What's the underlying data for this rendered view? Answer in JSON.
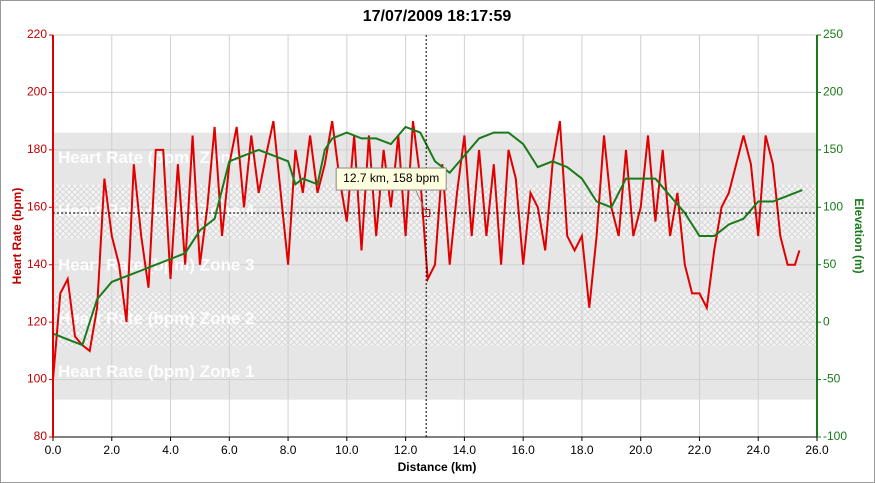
{
  "chart_data": {
    "type": "line",
    "title": "17/07/2009 18:17:59",
    "xlabel": "Distance (km)",
    "ylabel": "Heart Rate (bpm)",
    "y2label": "Elevation (m)",
    "xlim": [
      0,
      26
    ],
    "xticks": [
      {
        "value": 0,
        "label": "0.0"
      },
      {
        "value": 2,
        "label": "2.0"
      },
      {
        "value": 4,
        "label": "4.0"
      },
      {
        "value": 6,
        "label": "6.0"
      },
      {
        "value": 8,
        "label": "8.0"
      },
      {
        "value": 10,
        "label": "10.0"
      },
      {
        "value": 12,
        "label": "12.0"
      },
      {
        "value": 14,
        "label": "14.0"
      },
      {
        "value": 16,
        "label": "16.0"
      },
      {
        "value": 18,
        "label": "18.0"
      },
      {
        "value": 20,
        "label": "20.0"
      },
      {
        "value": 22,
        "label": "22.0"
      },
      {
        "value": 24,
        "label": "24.0"
      },
      {
        "value": 26,
        "label": "26.0"
      }
    ],
    "ylim": [
      80,
      220
    ],
    "yticks": [
      80,
      100,
      120,
      140,
      160,
      180,
      200,
      220
    ],
    "y2lim": [
      -100,
      250
    ],
    "y2ticks": [
      -100,
      -50,
      0,
      50,
      100,
      150,
      200,
      250
    ],
    "grid": true,
    "zones": [
      {
        "label": "Heart Rate (bpm) Zone 1",
        "from": 93,
        "to": 112,
        "pattern": "solid"
      },
      {
        "label": "Heart Rate (bpm) Zone 2",
        "from": 112,
        "to": 130,
        "pattern": "hatch"
      },
      {
        "label": "Heart Rate (bpm) Zone 3",
        "from": 130,
        "to": 149,
        "pattern": "solid"
      },
      {
        "label": "Heart Rate (bpm) Zone 4",
        "from": 149,
        "to": 168,
        "pattern": "hatch"
      },
      {
        "label": "Heart Rate (bpm) Zone 5",
        "from": 168,
        "to": 186,
        "pattern": "solid"
      }
    ],
    "crosshair": {
      "x": 12.7,
      "y": 158,
      "label": "12.7 km, 158 bpm"
    },
    "series": [
      {
        "color": "#e00000",
        "x": [
          0,
          0.25,
          0.5,
          0.75,
          1,
          1.25,
          1.5,
          1.75,
          2,
          2.25,
          2.5,
          2.75,
          3,
          3.25,
          3.5,
          3.75,
          4,
          4.25,
          4.5,
          4.75,
          5,
          5.25,
          5.5,
          5.75,
          6,
          6.25,
          6.5,
          6.75,
          7,
          7.25,
          7.5,
          7.75,
          8,
          8.25,
          8.5,
          8.75,
          9,
          9.25,
          9.5,
          9.75,
          10,
          10.25,
          10.5,
          10.75,
          11,
          11.25,
          11.5,
          11.75,
          12,
          12.25,
          12.5,
          12.75,
          13,
          13.25,
          13.5,
          13.75,
          14,
          14.25,
          14.5,
          14.75,
          15,
          15.25,
          15.5,
          15.75,
          16,
          16.25,
          16.5,
          16.75,
          17,
          17.25,
          17.5,
          17.75,
          18,
          18.25,
          18.5,
          18.75,
          19,
          19.25,
          19.5,
          19.75,
          20,
          20.25,
          20.5,
          20.75,
          21,
          21.25,
          21.5,
          21.75,
          22,
          22.25,
          22.5,
          22.75,
          23,
          23.25,
          23.5,
          23.75,
          24,
          24.25,
          24.5,
          24.75,
          25,
          25.25,
          25.4
        ],
        "values": [
          100,
          130,
          135,
          115,
          112,
          110,
          125,
          170,
          150,
          140,
          120,
          175,
          150,
          132,
          180,
          180,
          135,
          175,
          140,
          185,
          140,
          160,
          188,
          150,
          175,
          188,
          160,
          185,
          165,
          178,
          190,
          165,
          140,
          180,
          165,
          185,
          165,
          175,
          190,
          170,
          155,
          185,
          145,
          185,
          150,
          180,
          160,
          185,
          150,
          190,
          170,
          135,
          140,
          175,
          140,
          165,
          185,
          150,
          180,
          150,
          175,
          140,
          180,
          170,
          140,
          165,
          160,
          145,
          175,
          190,
          150,
          145,
          150,
          125,
          150,
          185,
          160,
          150,
          180,
          150,
          160,
          185,
          155,
          180,
          150,
          165,
          140,
          130,
          130,
          125,
          145,
          160,
          165,
          175,
          185,
          175,
          150,
          185,
          175,
          150,
          140,
          140,
          145
        ]
      },
      {
        "color": "#1a7a1a",
        "axis": "y2",
        "x": [
          0,
          0.5,
          1,
          1.5,
          2,
          2.5,
          3,
          3.5,
          4,
          4.5,
          5,
          5.5,
          6,
          6.5,
          7,
          7.5,
          8,
          8.25,
          8.5,
          9,
          9.25,
          9.5,
          10,
          10.5,
          11,
          11.5,
          12,
          12.5,
          13,
          13.5,
          14,
          14.5,
          15,
          15.5,
          16,
          16.5,
          17,
          17.5,
          18,
          18.5,
          19,
          19.5,
          20,
          20.5,
          21,
          21.5,
          22,
          22.5,
          23,
          23.5,
          24,
          24.5,
          25,
          25.5
        ],
        "values": [
          -10,
          -15,
          -20,
          20,
          35,
          40,
          45,
          50,
          55,
          60,
          80,
          90,
          140,
          145,
          150,
          145,
          140,
          120,
          125,
          120,
          150,
          160,
          165,
          160,
          160,
          155,
          170,
          165,
          140,
          130,
          145,
          160,
          165,
          165,
          155,
          135,
          140,
          135,
          125,
          105,
          100,
          125,
          125,
          125,
          110,
          95,
          75,
          75,
          85,
          90,
          105,
          105,
          110,
          115
        ]
      }
    ]
  }
}
